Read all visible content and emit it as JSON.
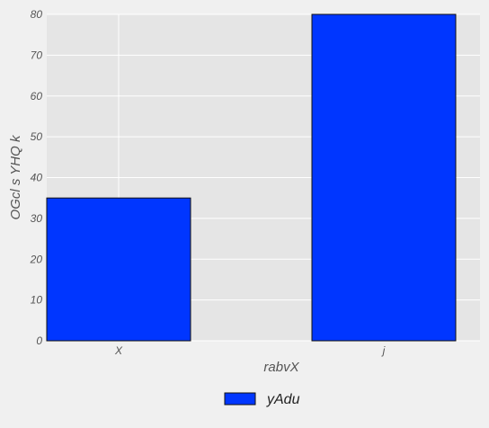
{
  "chart_data": {
    "type": "bar",
    "categories": [
      "X",
      "j"
    ],
    "series": [
      {
        "name": "yAdu",
        "values": [
          35,
          80
        ],
        "color": "#0036ff"
      }
    ],
    "title": "",
    "xlabel": "rabvX",
    "ylabel": "OGcl s YHQ k",
    "ylim": [
      0,
      80
    ],
    "yticks": [
      0,
      10,
      20,
      30,
      40,
      50,
      60,
      70,
      80
    ],
    "grid": true,
    "legend_position": "bottom-center"
  }
}
